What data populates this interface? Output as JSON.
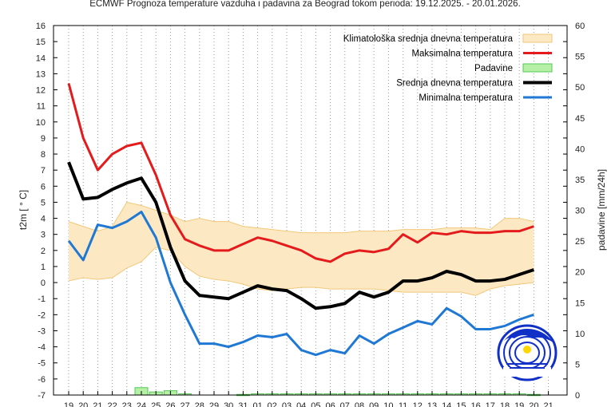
{
  "chart_data": {
    "type": "line",
    "title": "ECMWF Prognoza temperature vazduha i padavina za Beograd tokom perioda: 19.12.2025. - 20.01.2026.",
    "ylabel_left": "t2m [ ° C]",
    "ylabel_right": "padavine [mm/24h]",
    "ylim_left": [
      -7,
      16
    ],
    "ylim_right": [
      0,
      60
    ],
    "x_tick_labels": [
      "19",
      "20",
      "21",
      "22",
      "23",
      "24",
      "25",
      "26",
      "27",
      "28",
      "29",
      "30",
      "31",
      "01",
      "02",
      "03",
      "04",
      "05",
      "06",
      "07",
      "08",
      "09",
      "10",
      "11",
      "12",
      "13",
      "14",
      "15",
      "16",
      "17",
      "18",
      "19",
      "20",
      "21"
    ],
    "legend_position": "top-right",
    "grid": "vertical dotted",
    "series": [
      {
        "name": "Maksimalna temperatura",
        "color": "#e41a1c",
        "values": [
          12.4,
          9.0,
          7.0,
          8.0,
          8.5,
          8.7,
          6.7,
          4.2,
          2.7,
          2.3,
          2.0,
          2.0,
          2.4,
          2.8,
          2.6,
          2.3,
          2.0,
          1.5,
          1.3,
          1.8,
          2.0,
          1.9,
          2.1,
          3.0,
          2.5,
          3.1,
          3.0,
          3.2,
          3.1,
          3.1,
          3.2,
          3.2,
          3.5
        ]
      },
      {
        "name": "Srednja dnevna temperatura",
        "color": "#000000",
        "values": [
          7.5,
          5.2,
          5.3,
          5.8,
          6.2,
          6.5,
          5.0,
          2.2,
          0.1,
          -0.8,
          -0.9,
          -1.0,
          -0.6,
          -0.2,
          -0.4,
          -0.5,
          -1.0,
          -1.6,
          -1.5,
          -1.3,
          -0.6,
          -0.9,
          -0.6,
          0.1,
          0.1,
          0.3,
          0.7,
          0.5,
          0.1,
          0.1,
          0.2,
          0.5,
          0.8
        ]
      },
      {
        "name": "Minimalna temperatura",
        "color": "#1f78d4",
        "values": [
          2.6,
          1.4,
          3.6,
          3.4,
          3.8,
          4.4,
          2.8,
          0.0,
          -2.0,
          -3.8,
          -3.8,
          -4.0,
          -3.7,
          -3.3,
          -3.4,
          -3.2,
          -4.2,
          -4.5,
          -4.2,
          -4.4,
          -3.3,
          -3.8,
          -3.2,
          -2.8,
          -2.4,
          -2.6,
          -1.6,
          -2.1,
          -2.9,
          -2.9,
          -2.7,
          -2.3,
          -2.0
        ]
      },
      {
        "name": "Klimatološka srednja dnevna temperatura",
        "color": "#fce9c4",
        "edge_color": "#f2c879",
        "upper": [
          3.8,
          3.5,
          3.2,
          3.5,
          5.0,
          4.8,
          4.5,
          4.2,
          3.8,
          4.0,
          3.8,
          3.8,
          3.5,
          3.4,
          3.3,
          3.2,
          3.1,
          3.1,
          3.1,
          3.1,
          3.2,
          3.2,
          3.2,
          3.3,
          3.3,
          3.3,
          3.4,
          3.4,
          3.4,
          3.3,
          4.0,
          4.0,
          3.8
        ],
        "lower": [
          0.1,
          0.3,
          0.2,
          0.3,
          0.9,
          1.3,
          2.2,
          2.0,
          1.0,
          0.4,
          0.2,
          0.1,
          -0.1,
          -0.4,
          -0.5,
          -0.4,
          -0.3,
          -0.3,
          -0.4,
          -0.4,
          -0.4,
          -0.4,
          -0.5,
          -0.6,
          -0.6,
          -0.6,
          -0.6,
          -0.6,
          -0.8,
          -0.4,
          -0.2,
          -0.1,
          0.0
        ]
      },
      {
        "name": "Padavine",
        "color": "#b5f0a6",
        "edge_color": "#55c855",
        "values": [
          0,
          0,
          0,
          0,
          0,
          1.2,
          0.5,
          0.7,
          0.2,
          0,
          0,
          0,
          0.1,
          0.2,
          0.2,
          0.2,
          0.2,
          0.2,
          0.2,
          0.2,
          0.2,
          0.2,
          0.2,
          0.2,
          0.2,
          0.2,
          0.2,
          0.2,
          0.2,
          0.2,
          0.2,
          0.2,
          0.1
        ]
      }
    ]
  }
}
